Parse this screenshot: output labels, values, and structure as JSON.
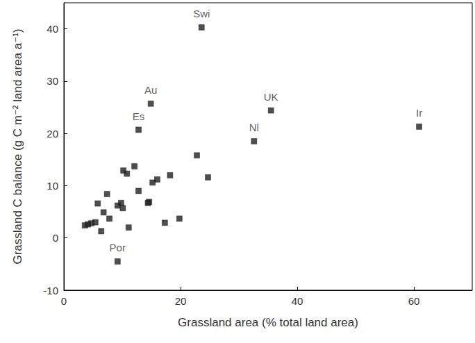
{
  "chart_data": {
    "type": "scatter",
    "x_label": "Grassland area (% total land area)",
    "y_label": "Grassland C balance (g C m⁻² land area a⁻¹)",
    "x": [
      23.6,
      14.9,
      12.8,
      35.5,
      32.6,
      60.9,
      9.2,
      22.8,
      24.7,
      18.2,
      16.0,
      15.2,
      12.1,
      10.2,
      10.8,
      12.8,
      7.4,
      5.8,
      9.8,
      9.2,
      10.1,
      14.6,
      14.4,
      6.8,
      7.8,
      5.4,
      4.7,
      4.1,
      3.6,
      6.4,
      11.1,
      17.3,
      19.8
    ],
    "y": [
      40.3,
      25.7,
      20.7,
      24.4,
      18.5,
      21.3,
      -4.5,
      15.8,
      11.6,
      12.0,
      11.2,
      10.6,
      13.7,
      12.9,
      12.3,
      9.0,
      8.4,
      6.6,
      6.7,
      6.2,
      5.7,
      6.9,
      6.7,
      4.9,
      3.7,
      3.0,
      2.8,
      2.6,
      2.4,
      1.3,
      2.0,
      2.9,
      3.7
    ],
    "point_labels": [
      "Swi",
      "Au",
      "Es",
      "UK",
      "Nl",
      "Ir",
      "Por",
      null,
      null,
      null,
      null,
      null,
      null,
      null,
      null,
      null,
      null,
      null,
      null,
      null,
      null,
      null,
      null,
      null,
      null,
      null,
      null,
      null,
      null,
      null,
      null,
      null,
      null
    ],
    "xlim": [
      0,
      70
    ],
    "xticks": [
      0,
      20,
      40,
      60
    ],
    "ylim": [
      -10,
      45
    ],
    "yticks": [
      -10,
      0,
      10,
      20,
      30,
      40
    ],
    "color": "#222222",
    "marker": "square",
    "grid": false
  }
}
